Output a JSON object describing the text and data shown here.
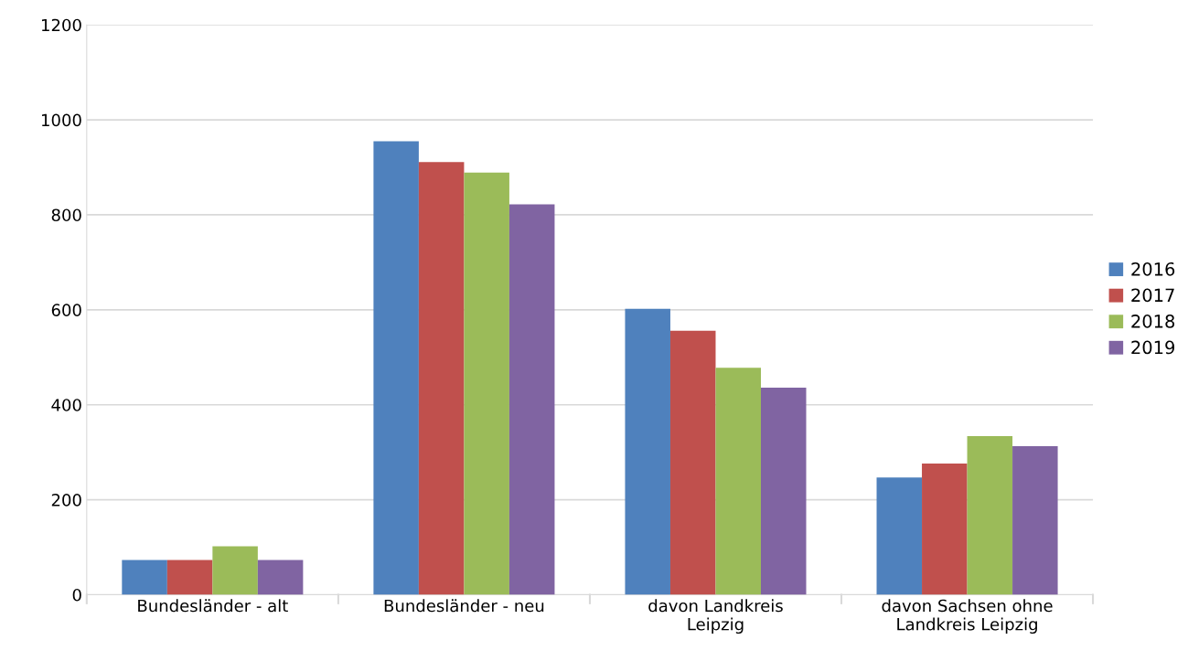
{
  "chart_data": {
    "type": "bar",
    "categories": [
      "Bundesländer - alt",
      "Bundesländer - neu",
      "davon Landkreis\nLeipzig",
      "davon Sachsen ohne\nLandkreis Leipzig"
    ],
    "series": [
      {
        "name": "2016",
        "color": "#4f81bd",
        "values": [
          73,
          955,
          602,
          247
        ]
      },
      {
        "name": "2017",
        "color": "#c0504d",
        "values": [
          73,
          911,
          556,
          276
        ]
      },
      {
        "name": "2018",
        "color": "#9bbb59",
        "values": [
          102,
          889,
          478,
          334
        ]
      },
      {
        "name": "2019",
        "color": "#8064a2",
        "values": [
          73,
          822,
          436,
          313
        ]
      }
    ],
    "ylim": [
      0,
      1200
    ],
    "yticks": [
      0,
      200,
      400,
      600,
      800,
      1000,
      1200
    ],
    "grid": "y",
    "legend": "right"
  }
}
